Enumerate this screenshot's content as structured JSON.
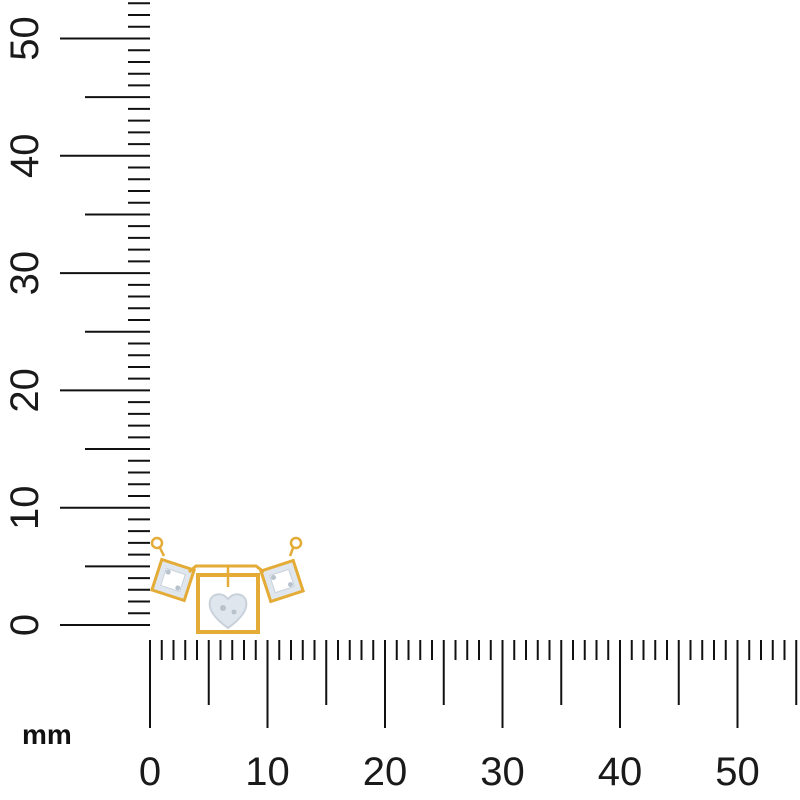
{
  "unit_label": "mm",
  "x_axis": {
    "ticks": [
      "0",
      "10",
      "20",
      "30",
      "40",
      "50"
    ],
    "range_mm": [
      0,
      55
    ]
  },
  "y_axis": {
    "ticks": [
      "0",
      "10",
      "20",
      "30",
      "40",
      "50"
    ],
    "range_mm": [
      0,
      53
    ]
  },
  "subject": "gold-pendant-with-diamond-squares-and-heart",
  "colors": {
    "ruler": "#111111",
    "gold": "#e4ab36",
    "stone": "#dfe6ee"
  }
}
